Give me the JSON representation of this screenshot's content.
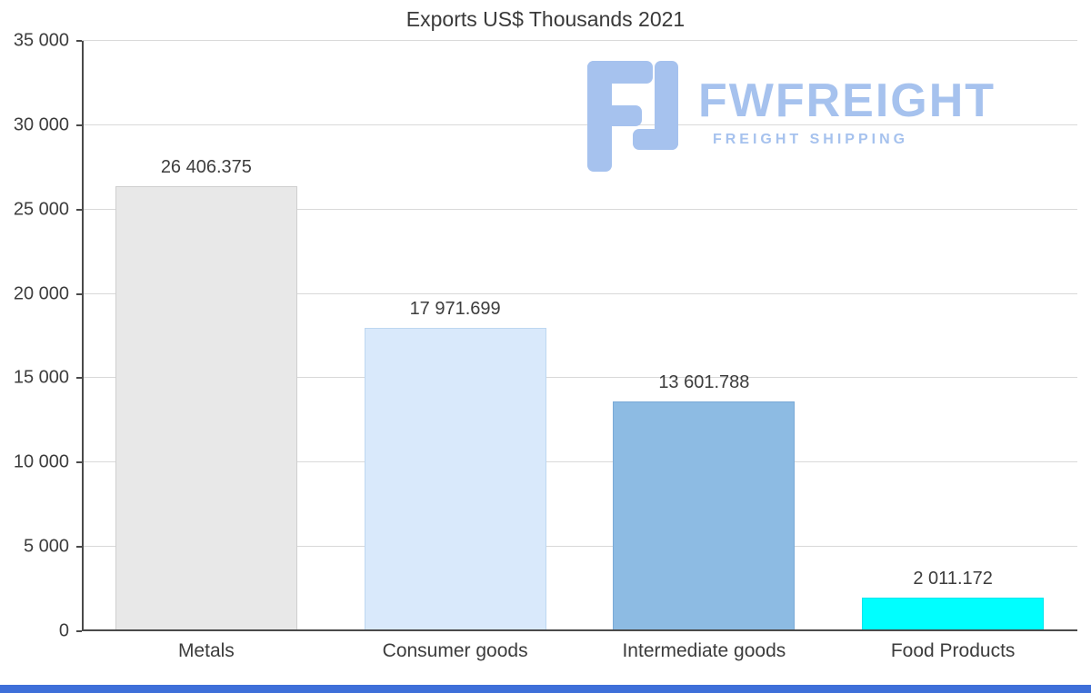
{
  "chart_data": {
    "type": "bar",
    "title": "Exports US$ Thousands 2021",
    "categories": [
      "Metals",
      "Consumer goods",
      "Intermediate goods",
      "Food Products"
    ],
    "values": [
      26406.375,
      17971.699,
      13601.788,
      2011.172
    ],
    "value_labels": [
      "26 406.375",
      "17 971.699",
      "13 601.788",
      "2 011.172"
    ],
    "bar_colors": [
      "#e8e8e8",
      "#d9e9fb",
      "#8dbbe3",
      "#00ffff"
    ],
    "bar_border_colors": [
      "#cfcfcf",
      "#bdd7f1",
      "#7aaad7",
      "#00e6ee"
    ],
    "xlabel": "",
    "ylabel": "",
    "ylim": [
      0,
      35000
    ],
    "ytick_interval": 5000,
    "ytick_labels": [
      "0",
      "5 000",
      "10 000",
      "15 000",
      "20 000",
      "25 000",
      "30 000",
      "35 000"
    ],
    "grid": true,
    "legend": "none"
  },
  "watermark": {
    "brand": "FWFREIGHT",
    "tagline": "FREIGHT SHIPPING",
    "color": "#a6c2ee"
  },
  "footer": {
    "color": "#3e6fd9"
  }
}
